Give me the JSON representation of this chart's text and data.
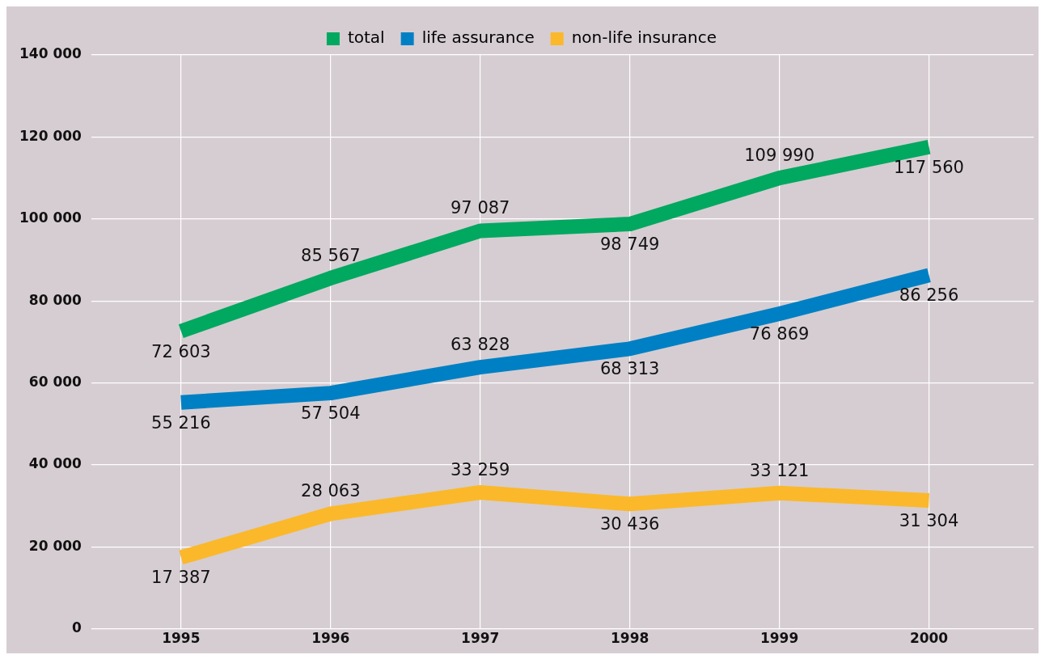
{
  "chart_data": {
    "type": "line",
    "x": [
      1995,
      1996,
      1997,
      1998,
      1999,
      2000
    ],
    "series": [
      {
        "name": "total",
        "color": "#00a860",
        "values": [
          72603,
          85567,
          97087,
          98749,
          109990,
          117560
        ],
        "value_labels": [
          "72 603",
          "85 567",
          "97 087",
          "98 749",
          "109 990",
          "117 560"
        ]
      },
      {
        "name": "life assurance",
        "color": "#0080c4",
        "values": [
          55216,
          57504,
          63828,
          68313,
          76869,
          86256
        ],
        "value_labels": [
          "55 216",
          "57 504",
          "63 828",
          "68 313",
          "76 869",
          "86 256"
        ]
      },
      {
        "name": "non-life insurance",
        "color": "#fbb82a",
        "values": [
          17387,
          28063,
          33259,
          30436,
          33121,
          31304
        ],
        "value_labels": [
          "17 387",
          "28 063",
          "33 259",
          "30 436",
          "33 121",
          "31 304"
        ]
      }
    ],
    "xlim": [
      1994.4,
      2000.7
    ],
    "xticks": [
      1995,
      1996,
      1997,
      1998,
      1999,
      2000
    ],
    "ylim": [
      0,
      140000
    ],
    "yticks": [
      {
        "value": 0,
        "label": "0"
      },
      {
        "value": 20000,
        "label": "20 000"
      },
      {
        "value": 40000,
        "label": "40 000"
      },
      {
        "value": 60000,
        "label": "60 000"
      },
      {
        "value": 80000,
        "label": "80 000"
      },
      {
        "value": 100000,
        "label": "100 000"
      },
      {
        "value": 120000,
        "label": "120 000"
      },
      {
        "value": 140000,
        "label": "140 000"
      }
    ],
    "grid": true,
    "legend": "top",
    "marker": "none"
  }
}
